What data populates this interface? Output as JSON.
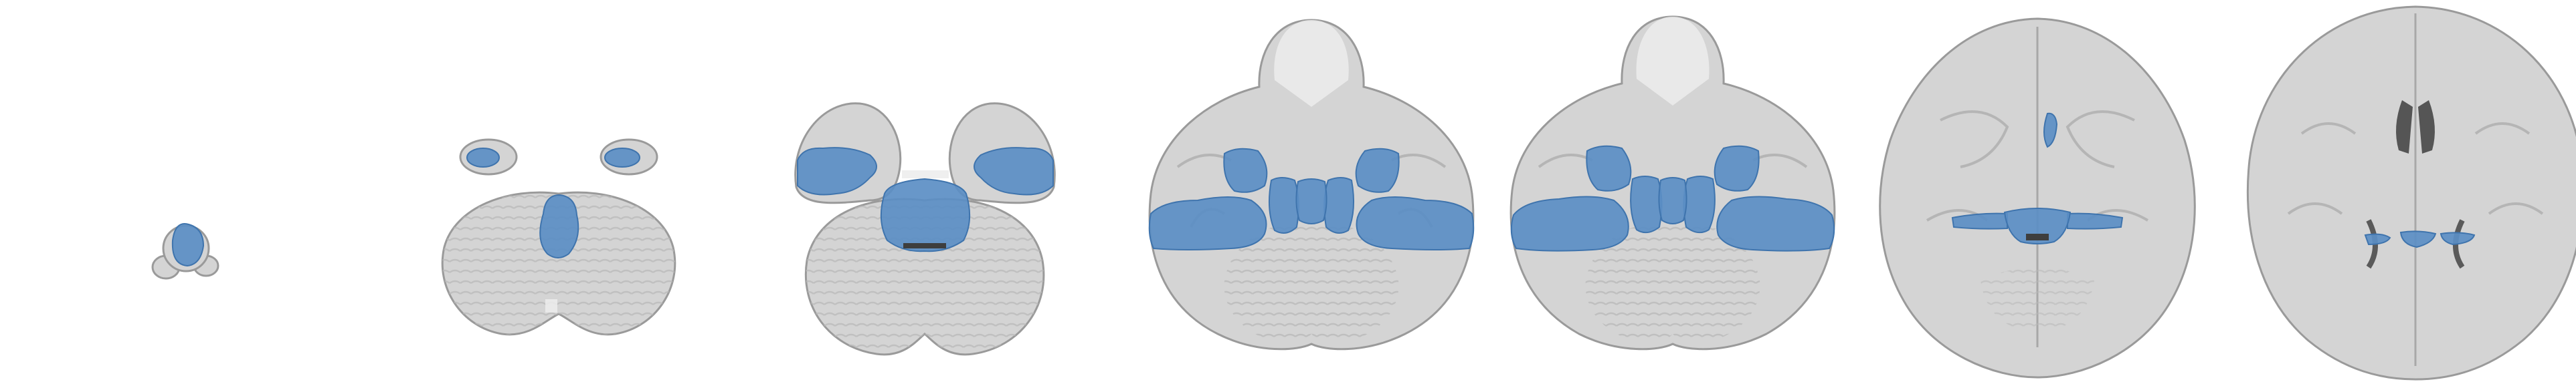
{
  "figure": {
    "slice_count": 7,
    "colors": {
      "background": "#ffffff",
      "brain_tissue": "#d4d4d4",
      "brain_outline": "#9a9a9a",
      "white_matter": "#ececec",
      "gyri_lines": "#b5b5b5",
      "ventricle": "#555555",
      "overlay": "#5b8ec4",
      "overlay_edge": "#3f74ad"
    },
    "overlay_opacity": 0.92
  }
}
